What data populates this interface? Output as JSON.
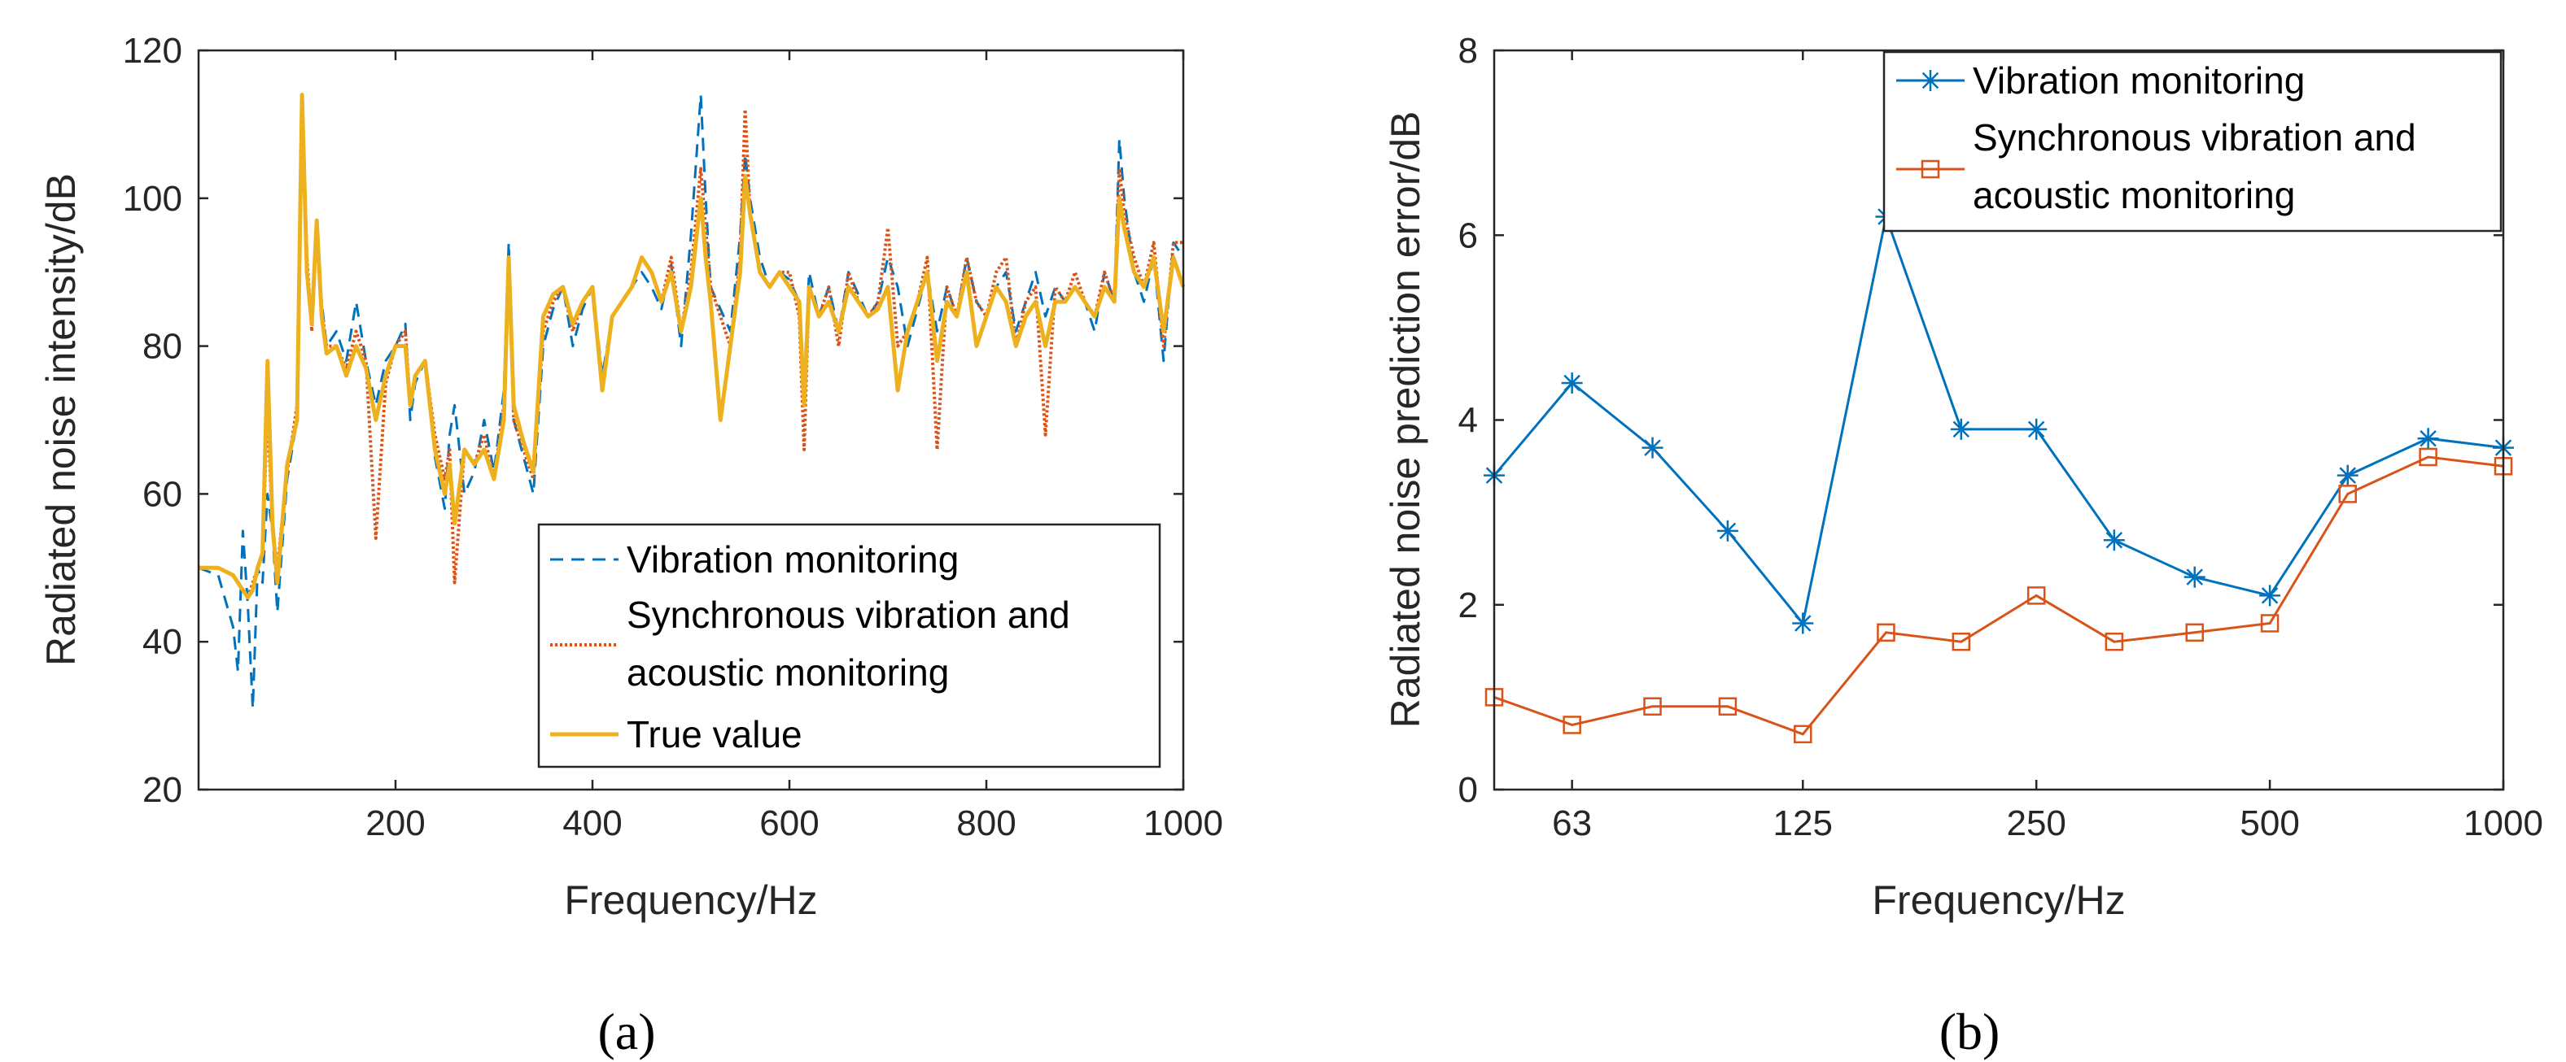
{
  "colors": {
    "vibration": "#0072BD",
    "synchronous": "#D95319",
    "true_value": "#EDB120"
  },
  "chart_data": [
    {
      "type": "line",
      "panel_label": "(a)",
      "xlabel": "Frequency/Hz",
      "ylabel": "Radiated noise intensity/dB",
      "xlim": [
        0,
        1000
      ],
      "ylim": [
        20,
        120
      ],
      "xticks": [
        200,
        400,
        600,
        800,
        1000
      ],
      "yticks": [
        20,
        40,
        60,
        80,
        100,
        120
      ],
      "legend_position": "bottom-right",
      "series": [
        {
          "name": "Vibration monitoring",
          "style": "dashed",
          "x": [
            0,
            20,
            35,
            40,
            45,
            50,
            55,
            60,
            65,
            70,
            75,
            80,
            90,
            100,
            105,
            110,
            115,
            120,
            125,
            130,
            140,
            150,
            160,
            170,
            180,
            190,
            200,
            210,
            215,
            220,
            230,
            240,
            250,
            255,
            260,
            270,
            280,
            290,
            300,
            310,
            315,
            320,
            330,
            340,
            350,
            360,
            370,
            380,
            390,
            400,
            410,
            420,
            430,
            440,
            450,
            460,
            470,
            480,
            490,
            500,
            510,
            515,
            520,
            530,
            540,
            550,
            555,
            560,
            570,
            580,
            590,
            600,
            610,
            615,
            620,
            630,
            640,
            650,
            660,
            670,
            680,
            690,
            700,
            710,
            720,
            730,
            740,
            750,
            760,
            770,
            780,
            790,
            800,
            810,
            820,
            830,
            840,
            850,
            860,
            870,
            880,
            890,
            900,
            910,
            920,
            930,
            935,
            940,
            950,
            960,
            970,
            980,
            990,
            1000
          ],
          "y": [
            50,
            49,
            42,
            36,
            55,
            45,
            31,
            50,
            48,
            60,
            55,
            44,
            62,
            70,
            114,
            90,
            84,
            96,
            86,
            80,
            82,
            78,
            86,
            78,
            72,
            78,
            80,
            83,
            70,
            75,
            78,
            65,
            58,
            68,
            72,
            60,
            63,
            70,
            63,
            74,
            94,
            70,
            65,
            60,
            80,
            85,
            88,
            80,
            85,
            88,
            76,
            84,
            86,
            88,
            90,
            88,
            85,
            91,
            80,
            95,
            114,
            100,
            88,
            85,
            82,
            95,
            106,
            100,
            92,
            88,
            90,
            89,
            86,
            75,
            90,
            84,
            88,
            82,
            90,
            87,
            84,
            86,
            92,
            88,
            80,
            85,
            90,
            82,
            88,
            84,
            92,
            86,
            84,
            88,
            90,
            82,
            86,
            90,
            84,
            88,
            86,
            88,
            86,
            82,
            90,
            86,
            108,
            100,
            90,
            86,
            92,
            78,
            94,
            92
          ]
        },
        {
          "name": "Synchronous vibration and acoustic monitoring",
          "style": "dotted",
          "x": [
            0,
            20,
            35,
            40,
            45,
            50,
            55,
            60,
            65,
            70,
            75,
            80,
            90,
            100,
            105,
            110,
            115,
            120,
            125,
            130,
            140,
            150,
            160,
            170,
            180,
            190,
            200,
            210,
            215,
            220,
            230,
            240,
            250,
            255,
            260,
            270,
            280,
            290,
            300,
            310,
            315,
            320,
            330,
            340,
            350,
            360,
            370,
            380,
            390,
            400,
            410,
            420,
            430,
            440,
            450,
            460,
            470,
            480,
            490,
            500,
            510,
            515,
            520,
            530,
            540,
            550,
            555,
            560,
            570,
            580,
            590,
            600,
            610,
            615,
            620,
            630,
            640,
            650,
            660,
            670,
            680,
            690,
            700,
            710,
            720,
            730,
            740,
            750,
            760,
            770,
            780,
            790,
            800,
            810,
            820,
            830,
            840,
            850,
            860,
            870,
            880,
            890,
            900,
            910,
            920,
            930,
            935,
            940,
            950,
            960,
            970,
            980,
            990,
            1000
          ],
          "y": [
            50,
            50,
            49,
            48,
            47,
            46,
            48,
            50,
            52,
            72,
            55,
            50,
            63,
            72,
            112,
            92,
            82,
            97,
            85,
            80,
            80,
            77,
            82,
            78,
            54,
            75,
            80,
            82,
            72,
            76,
            78,
            68,
            62,
            66,
            48,
            66,
            64,
            68,
            62,
            72,
            92,
            70,
            66,
            62,
            82,
            86,
            88,
            82,
            86,
            88,
            74,
            84,
            86,
            88,
            92,
            90,
            86,
            92,
            82,
            90,
            104,
            96,
            88,
            84,
            80,
            92,
            112,
            98,
            90,
            88,
            90,
            90,
            84,
            66,
            88,
            84,
            88,
            80,
            90,
            86,
            84,
            86,
            96,
            80,
            82,
            86,
            92,
            66,
            88,
            84,
            92,
            86,
            84,
            90,
            92,
            80,
            86,
            88,
            68,
            88,
            86,
            90,
            86,
            84,
            90,
            86,
            104,
            98,
            92,
            88,
            94,
            80,
            94,
            94
          ]
        },
        {
          "name": "True value",
          "style": "solid",
          "x": [
            0,
            20,
            35,
            40,
            45,
            50,
            55,
            60,
            65,
            70,
            75,
            80,
            90,
            100,
            105,
            110,
            115,
            120,
            125,
            130,
            140,
            150,
            160,
            170,
            180,
            190,
            200,
            210,
            215,
            220,
            230,
            240,
            250,
            255,
            260,
            270,
            280,
            290,
            300,
            310,
            315,
            320,
            330,
            340,
            350,
            360,
            370,
            380,
            390,
            400,
            410,
            420,
            430,
            440,
            450,
            460,
            470,
            480,
            490,
            500,
            510,
            515,
            520,
            530,
            540,
            550,
            555,
            560,
            570,
            580,
            590,
            600,
            610,
            615,
            620,
            630,
            640,
            650,
            660,
            670,
            680,
            690,
            700,
            710,
            720,
            730,
            740,
            750,
            760,
            770,
            780,
            790,
            800,
            810,
            820,
            830,
            840,
            850,
            860,
            870,
            880,
            890,
            900,
            910,
            920,
            930,
            935,
            940,
            950,
            960,
            970,
            980,
            990,
            1000
          ],
          "y": [
            50,
            50,
            49,
            48,
            47,
            46,
            47,
            50,
            52,
            78,
            56,
            48,
            64,
            70,
            114,
            90,
            83,
            97,
            84,
            79,
            80,
            76,
            80,
            77,
            70,
            76,
            80,
            80,
            72,
            76,
            78,
            66,
            60,
            64,
            56,
            66,
            64,
            66,
            62,
            70,
            92,
            72,
            67,
            63,
            84,
            87,
            88,
            83,
            86,
            88,
            74,
            84,
            86,
            88,
            92,
            90,
            86,
            90,
            82,
            88,
            100,
            92,
            86,
            70,
            80,
            90,
            103,
            98,
            90,
            88,
            90,
            88,
            86,
            72,
            88,
            84,
            86,
            82,
            88,
            86,
            84,
            85,
            88,
            74,
            82,
            86,
            90,
            78,
            86,
            84,
            90,
            80,
            84,
            88,
            86,
            80,
            84,
            86,
            80,
            86,
            86,
            88,
            86,
            84,
            88,
            86,
            100,
            96,
            90,
            88,
            92,
            82,
            92,
            88
          ]
        }
      ]
    },
    {
      "type": "line",
      "panel_label": "(b)",
      "xlabel": "Frequency/Hz",
      "ylabel": "Radiated noise prediction error/dB",
      "x_scale": "log (one-third octave bands)",
      "xticks": [
        "63",
        "125",
        "250",
        "500",
        "1000"
      ],
      "yticks": [
        0,
        2,
        4,
        6,
        8
      ],
      "ylim": [
        0,
        8
      ],
      "legend_position": "top-right",
      "x": [
        50,
        63,
        80,
        100,
        125,
        160,
        200,
        250,
        315,
        400,
        500,
        630,
        800,
        1000
      ],
      "series": [
        {
          "name": "Vibration monitoring",
          "marker": "asterisk",
          "values": [
            3.4,
            4.4,
            3.7,
            2.8,
            1.8,
            6.2,
            3.9,
            3.9,
            2.7,
            2.3,
            2.1,
            3.4,
            3.8,
            3.7
          ]
        },
        {
          "name": "Synchronous vibration and acoustic monitoring",
          "marker": "square",
          "values": [
            1.0,
            0.7,
            0.9,
            0.9,
            0.6,
            1.7,
            1.6,
            2.1,
            1.6,
            1.7,
            1.8,
            3.2,
            3.6,
            3.5
          ]
        }
      ]
    }
  ]
}
